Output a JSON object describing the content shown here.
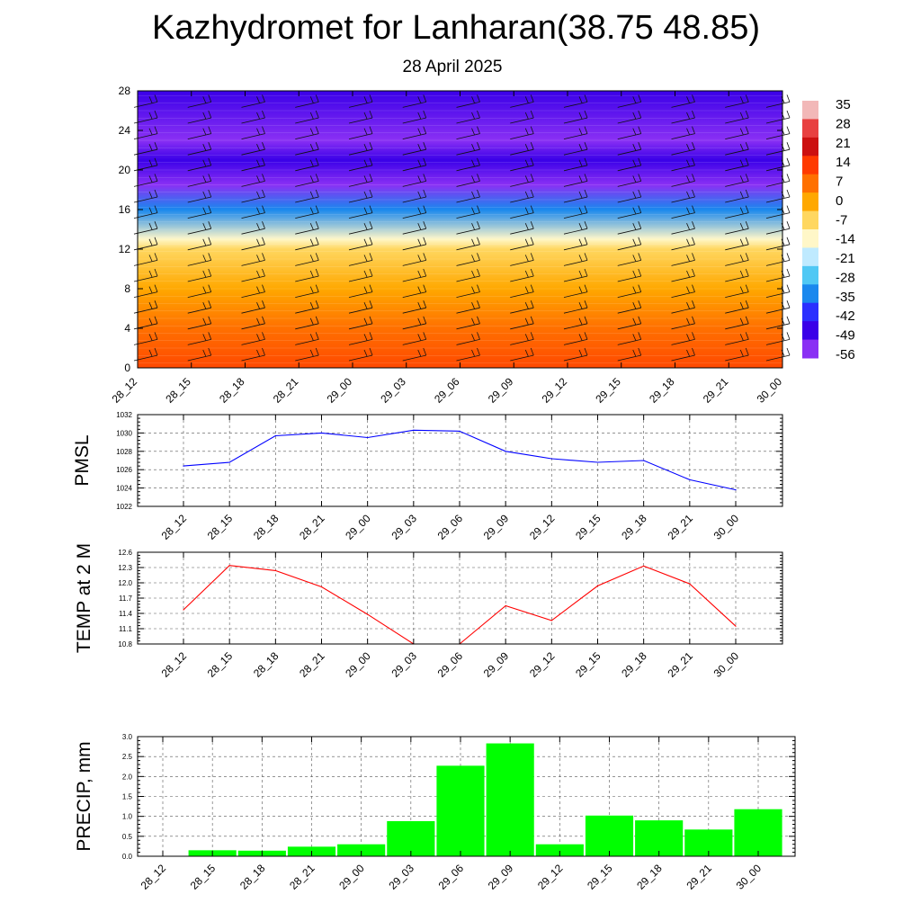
{
  "title": "Kazhydromet for Lanharan(38.75 48.85)",
  "subtitle": "28 April 2025",
  "chart_data": [
    {
      "type": "heatmap",
      "x_categories": [
        "28_12",
        "28_15",
        "28_18",
        "28_21",
        "29_00",
        "29_03",
        "29_06",
        "29_09",
        "29_12",
        "29_15",
        "29_18",
        "29_21",
        "30_00"
      ],
      "y_ticks": [
        0,
        4,
        8,
        12,
        16,
        20,
        24,
        28
      ],
      "ylim": [
        0,
        28
      ],
      "colorbar_labels": [
        "35",
        "28",
        "21",
        "14",
        "7",
        "0",
        "-7",
        "-14",
        "-21",
        "-28",
        "-35",
        "-42",
        "-49",
        "-56"
      ],
      "colorbar_colors": [
        "#f2b8b8",
        "#e84040",
        "#cc1010",
        "#ff3a00",
        "#ff7000",
        "#ffa800",
        "#ffd760",
        "#fff7c8",
        "#bfeaff",
        "#50c8f4",
        "#1a88ee",
        "#2b30ff",
        "#3a00e8",
        "#8a30f4"
      ],
      "profile": [
        {
          "level": 0,
          "value": 12
        },
        {
          "level": 4,
          "value": 7
        },
        {
          "level": 8,
          "value": 0
        },
        {
          "level": 12,
          "value": -7
        },
        {
          "level": 13,
          "value": -14
        },
        {
          "level": 16,
          "value": -35
        },
        {
          "level": 18.5,
          "value": -56
        },
        {
          "level": 21,
          "value": -49
        },
        {
          "level": 23,
          "value": -56
        },
        {
          "level": 28,
          "value": -49
        }
      ]
    },
    {
      "type": "line",
      "ylabel": "PMSL",
      "categories": [
        "28_12",
        "28_15",
        "28_18",
        "28_21",
        "29_00",
        "29_03",
        "29_06",
        "29_09",
        "29_12",
        "29_15",
        "29_18",
        "29_21",
        "30_00"
      ],
      "values": [
        1026.4,
        1026.8,
        1029.7,
        1030.0,
        1029.5,
        1030.3,
        1030.2,
        1028.0,
        1027.2,
        1026.8,
        1027.0,
        1024.9,
        1023.8
      ],
      "ylim": [
        1022,
        1032
      ],
      "yticks": [
        1022,
        1024,
        1026,
        1028,
        1030,
        1032
      ],
      "color": "#0000ff",
      "grid": true
    },
    {
      "type": "line",
      "ylabel": "TEMP at 2 M",
      "categories": [
        "28_12",
        "28_15",
        "28_18",
        "28_21",
        "29_00",
        "29_03",
        "29_06",
        "29_09",
        "29_12",
        "29_15",
        "29_18",
        "29_21",
        "30_00"
      ],
      "values": [
        11.47,
        12.34,
        12.24,
        11.92,
        11.38,
        10.8,
        10.8,
        11.55,
        11.26,
        11.94,
        12.33,
        11.98,
        11.15
      ],
      "ylim": [
        10.8,
        12.6
      ],
      "yticks": [
        10.8,
        11.1,
        11.4,
        11.7,
        12.0,
        12.3,
        12.6
      ],
      "color": "#ff0000",
      "grid": true
    },
    {
      "type": "bar",
      "ylabel": "PRECIP, mm",
      "categories": [
        "28_12",
        "28_15",
        "28_18",
        "28_21",
        "29_00",
        "29_03",
        "29_06",
        "29_09",
        "29_12",
        "29_15",
        "29_18",
        "29_21",
        "30_00"
      ],
      "values": [
        0,
        0.15,
        0.14,
        0.24,
        0.3,
        0.88,
        2.27,
        2.83,
        0.3,
        1.02,
        0.9,
        0.67,
        1.18
      ],
      "ylim": [
        0,
        3.0
      ],
      "yticks": [
        0.0,
        0.5,
        1.0,
        1.5,
        2.0,
        2.5,
        3.0
      ],
      "color": "#00ff00",
      "grid": true
    }
  ]
}
